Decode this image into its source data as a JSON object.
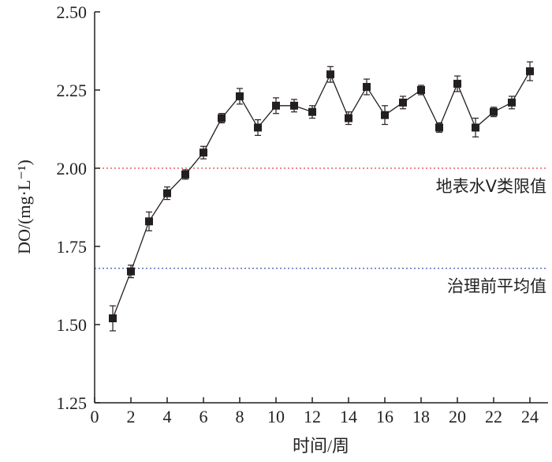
{
  "chart_data": {
    "type": "line",
    "xlabel": "时间/周",
    "ylabel": "DO/(mg·L⁻¹)",
    "xlim": [
      0,
      25
    ],
    "ylim": [
      1.25,
      2.5
    ],
    "xticks": [
      0,
      2,
      4,
      6,
      8,
      10,
      12,
      14,
      16,
      18,
      20,
      22,
      24
    ],
    "yticks": [
      1.25,
      1.5,
      1.75,
      2.0,
      2.25,
      2.5
    ],
    "ytick_labels": [
      "1.25",
      "1.50",
      "1.75",
      "2.00",
      "2.25",
      "2.50"
    ],
    "grid": false,
    "series": [
      {
        "marker": "square",
        "color": "#231f20",
        "x": [
          1,
          2,
          3,
          4,
          5,
          6,
          7,
          8,
          9,
          10,
          11,
          12,
          13,
          14,
          15,
          16,
          17,
          18,
          19,
          20,
          21,
          22,
          23,
          24
        ],
        "y": [
          1.52,
          1.67,
          1.83,
          1.92,
          1.98,
          2.05,
          2.16,
          2.23,
          2.13,
          2.2,
          2.2,
          2.18,
          2.3,
          2.16,
          2.26,
          2.17,
          2.21,
          2.25,
          2.13,
          2.27,
          2.13,
          2.18,
          2.21,
          2.31
        ],
        "error": [
          0.04,
          0.02,
          0.03,
          0.02,
          0.015,
          0.02,
          0.015,
          0.025,
          0.025,
          0.025,
          0.02,
          0.02,
          0.025,
          0.02,
          0.025,
          0.03,
          0.02,
          0.015,
          0.015,
          0.025,
          0.03,
          0.015,
          0.02,
          0.03
        ]
      }
    ],
    "reference_lines": [
      {
        "y": 2.0,
        "label": "地表水V类限值",
        "color": "#e04040",
        "style": "dotted"
      },
      {
        "y": 1.68,
        "label": "治理前平均值",
        "color": "#4050b0",
        "style": "dotted"
      }
    ]
  }
}
